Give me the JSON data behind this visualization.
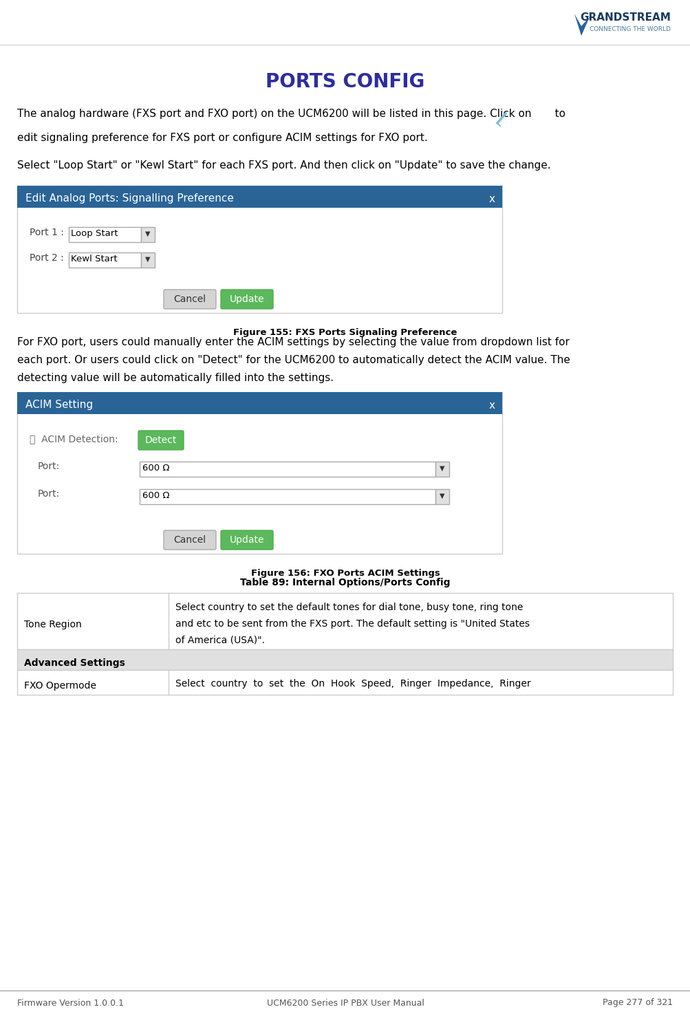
{
  "page_bg": "#ffffff",
  "title": "PORTS CONFIG",
  "title_color": "#2e2e99",
  "title_fontsize": 20,
  "body_fontsize": 11,
  "body_color": "#000000",
  "para1_line1": "The analog hardware (FXS port and FXO port) on the UCM6200 will be listed in this page. Click on       to",
  "para1_line2": "edit signaling preference for FXS port or configure ACIM settings for FXO port.",
  "para2": "Select \"Loop Start\" or \"Kewl Start\" for each FXS port. And then click on \"Update\" to save the change.",
  "fig1_title": "Edit Analog Ports: Signalling Preference",
  "fig1_caption": "Figure 155: FXS Ports Signaling Preference",
  "fig2_title": "ACIM Setting",
  "fig2_caption": "Figure 156: FXO Ports ACIM Settings",
  "table_title": "Table 89: Internal Options/Ports Config",
  "table_row1_col1": "Tone Region",
  "table_adv_header": "Advanced Settings",
  "table_row2_col1": "FXO Opermode",
  "table_row2_col2": "Select  country  to  set  the  On  Hook  Speed,  Ringer  Impedance,  Ringer",
  "footer_left": "Firmware Version 1.0.0.1",
  "footer_center": "UCM6200 Series IP PBX User Manual",
  "footer_right": "Page 277 of 321",
  "header_bar_color": "#2a6496",
  "header_bar_text_color": "#ffffff",
  "dialog_border_color": "#cccccc",
  "dialog_bg": "#ffffff",
  "button_update_color": "#5cb85c",
  "detect_button_color": "#5cb85c",
  "table_adv_bg": "#e0e0e0",
  "table_border_color": "#cccccc",
  "grandstream_text": "GRANDSTREAM",
  "grandstream_sub": "CONNECTING THE WORLD"
}
